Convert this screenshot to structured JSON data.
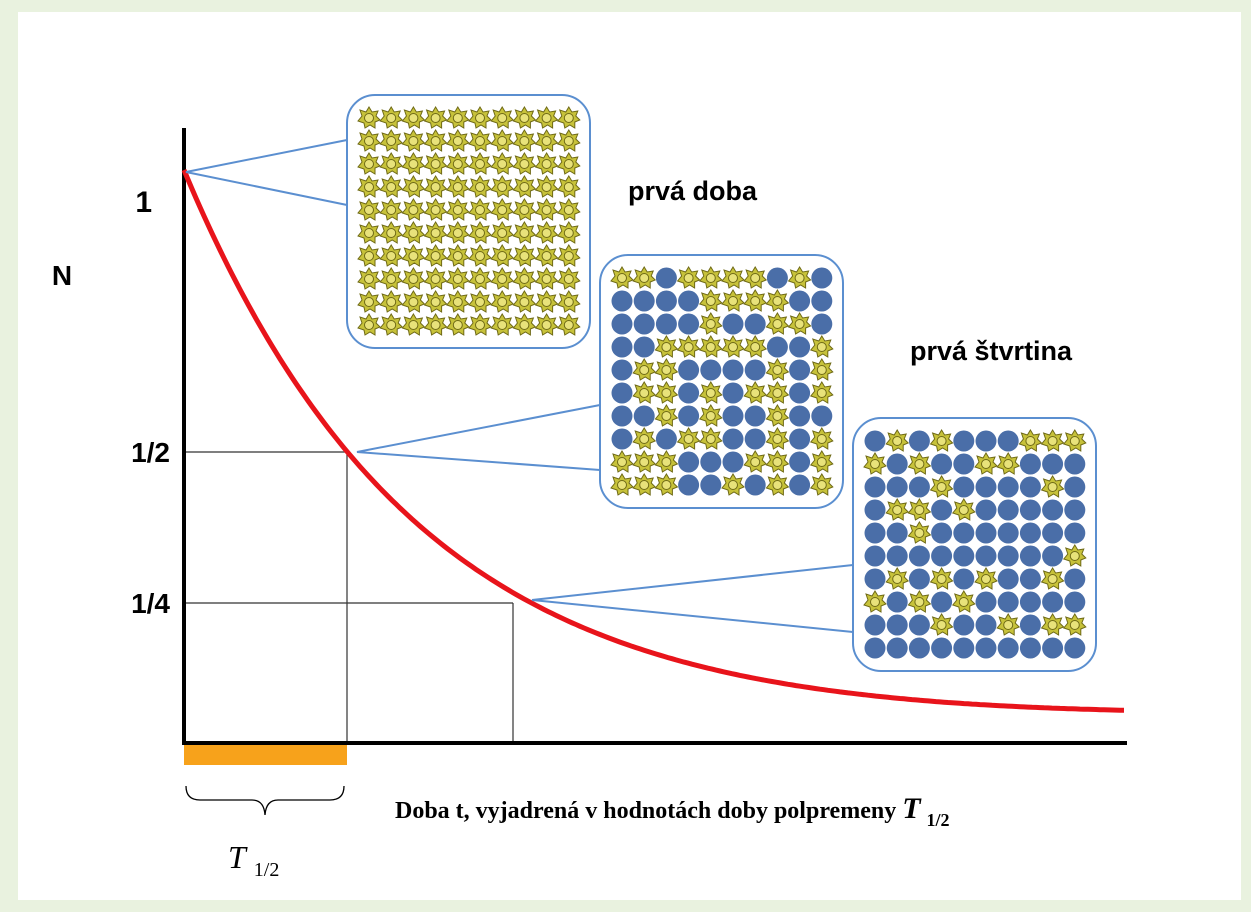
{
  "axis": {
    "y_label": "N",
    "y_ticks": [
      "1",
      "1/2",
      "1/4"
    ],
    "x_title": "Doba t, vyjadrená v hodnotách doby polpremeny",
    "x_title_symbol": "T",
    "x_title_subscript": "1/2"
  },
  "period": {
    "symbol": "T",
    "subscript": "1/2"
  },
  "labels": [
    "prvá doba",
    "prvá štvrtina"
  ]
}
